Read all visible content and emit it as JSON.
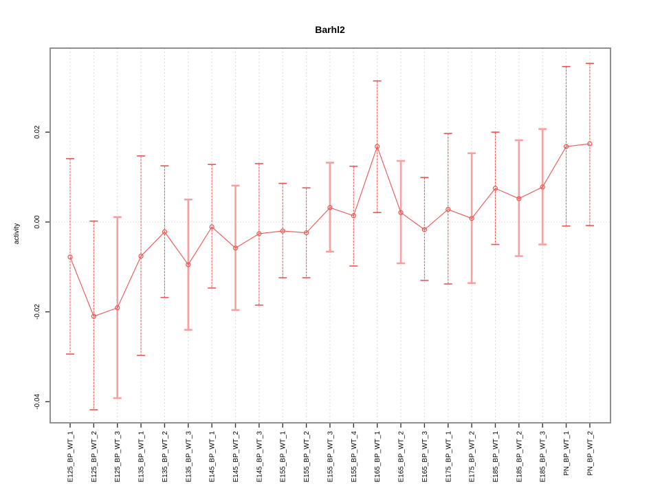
{
  "title": "Barhl2",
  "chart_data": {
    "type": "line",
    "title": "Barhl2",
    "xlabel": "",
    "ylabel": "activity",
    "ylim": [
      -0.0447,
      0.0387
    ],
    "yticks": [
      0.02,
      0.0,
      -0.02,
      -0.04
    ],
    "ytick_labels": [
      "0.02",
      "0.00",
      "-0.02",
      "-0.04"
    ],
    "grid": "dotted vertical line at each category; dotted horizontal line at 0",
    "legend": "none",
    "marker": "open-circle",
    "categories": [
      "E125_BP_WT_1",
      "E125_BP_WT_2",
      "E125_BP_WT_3",
      "E135_BP_WT_1",
      "E135_BP_WT_2",
      "E135_BP_WT_3",
      "E145_BP_WT_1",
      "E145_BP_WT_2",
      "E145_BP_WT_3",
      "E155_BP_WT_1",
      "E155_BP_WT_2",
      "E155_BP_WT_3",
      "E155_BP_WT_4",
      "E165_BP_WT_1",
      "E165_BP_WT_2",
      "E165_BP_WT_3",
      "E175_BP_WT_1",
      "E175_BP_WT_2",
      "E185_BP_WT_1",
      "E185_BP_WT_2",
      "E185_BP_WT_3",
      "PN_BP_WT_1",
      "PN_BP_WT_2"
    ],
    "series": [
      {
        "name": "activity",
        "values": [
          -0.0078,
          -0.021,
          -0.0191,
          -0.0076,
          -0.0022,
          -0.0095,
          -0.0011,
          -0.0058,
          -0.0026,
          -0.002,
          -0.0024,
          0.0032,
          0.0014,
          0.0168,
          0.0021,
          -0.0017,
          0.0028,
          0.0008,
          0.0075,
          0.0052,
          0.0078,
          0.0168,
          0.0174
        ],
        "err_high": [
          0.0141,
          0.0002,
          0.0011,
          0.0147,
          0.0125,
          0.005,
          0.0128,
          0.0081,
          0.013,
          0.0086,
          0.0076,
          0.0132,
          0.0124,
          0.0314,
          0.0136,
          0.0099,
          0.0197,
          0.0153,
          0.02,
          0.0182,
          0.0207,
          0.0346,
          0.0353
        ],
        "err_low": [
          -0.0294,
          -0.0418,
          -0.0392,
          -0.0297,
          -0.0168,
          -0.024,
          -0.0147,
          -0.0196,
          -0.0185,
          -0.0124,
          -0.0124,
          -0.0066,
          -0.0098,
          0.0021,
          -0.0092,
          -0.013,
          -0.0138,
          -0.0136,
          -0.005,
          -0.0076,
          -0.005,
          -0.0009,
          -0.0008
        ],
        "bar_style": [
          "thin",
          "thin",
          "thick",
          "thin",
          "thin",
          "thick",
          "thin",
          "thick",
          "thin",
          "thin",
          "thin",
          "thick",
          "thin",
          "thin",
          "thick",
          "thin",
          "thin",
          "thick",
          "thin",
          "thick",
          "thick",
          "thin",
          "thin"
        ]
      }
    ],
    "colors": {
      "series_red": "#f0524f",
      "thick_bar_pink": "#f9a09e",
      "grid_gray": "#d9d9d9",
      "frame_gray": "#8f8f8f",
      "tick_black": "#333333",
      "background": "#ffffff"
    }
  }
}
